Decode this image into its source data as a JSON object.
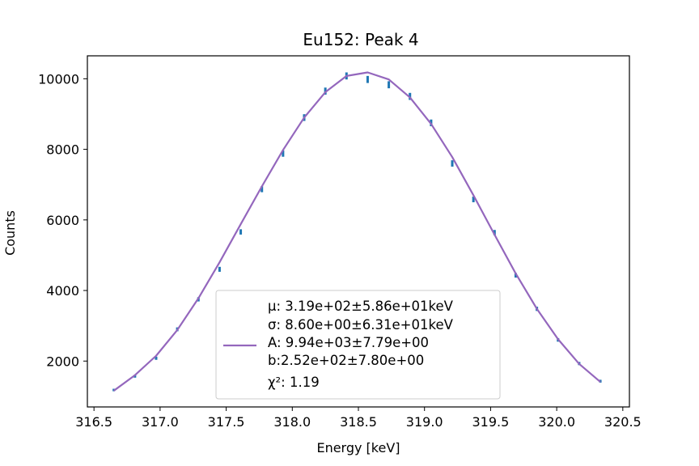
{
  "chart_data": {
    "type": "scatter",
    "title": "Eu152: Peak 4",
    "xlabel": "Energy [keV]",
    "ylabel": "Counts",
    "xlim": [
      316.45,
      320.55
    ],
    "ylim": [
      700,
      10650
    ],
    "xticks": [
      316.5,
      317.0,
      317.5,
      318.0,
      318.5,
      319.0,
      319.5,
      320.0,
      320.5
    ],
    "xtick_labels": [
      "316.5",
      "317.0",
      "317.5",
      "318.0",
      "318.5",
      "319.0",
      "319.5",
      "320.0",
      "320.5"
    ],
    "yticks": [
      2000,
      4000,
      6000,
      8000,
      10000
    ],
    "ytick_labels": [
      "2000",
      "4000",
      "6000",
      "8000",
      "10000"
    ],
    "grid": false,
    "series": [
      {
        "kind": "data-with-errorbars",
        "color": "#1f77b4",
        "x": [
          316.65,
          316.81,
          316.97,
          317.13,
          317.29,
          317.45,
          317.61,
          317.77,
          317.93,
          318.09,
          318.25,
          318.41,
          318.57,
          318.73,
          318.89,
          319.05,
          319.21,
          319.37,
          319.53,
          319.69,
          319.85,
          320.01,
          320.17,
          320.33
        ],
        "y": [
          1180,
          1570,
          2080,
          2900,
          3750,
          4600,
          5660,
          6870,
          7880,
          8900,
          9650,
          10080,
          9980,
          9830,
          9500,
          8750,
          7600,
          6580,
          5640,
          4430,
          3480,
          2600,
          1930,
          1430
        ],
        "yerr": [
          35,
          40,
          45,
          55,
          60,
          70,
          75,
          85,
          90,
          95,
          100,
          100,
          100,
          100,
          100,
          95,
          90,
          80,
          75,
          65,
          60,
          50,
          45,
          40
        ]
      },
      {
        "kind": "fit-line",
        "color": "#9467bd",
        "x": [
          316.65,
          316.81,
          316.97,
          317.13,
          317.29,
          317.45,
          317.61,
          317.77,
          317.93,
          318.09,
          318.25,
          318.41,
          318.57,
          318.73,
          318.89,
          319.05,
          319.21,
          319.37,
          319.53,
          319.69,
          319.85,
          320.01,
          320.17,
          320.33
        ],
        "y": [
          1160,
          1600,
          2150,
          2880,
          3780,
          4800,
          5880,
          6950,
          7980,
          8900,
          9620,
          10080,
          10180,
          9980,
          9470,
          8720,
          7780,
          6700,
          5580,
          4480,
          3480,
          2620,
          1920,
          1410
        ]
      }
    ],
    "legend": {
      "placement": "lower center",
      "entries": [
        "μ: 3.19e+02±5.86e+01keV",
        "σ: 8.60e+00±6.31e+01keV",
        "A: 9.94e+03±7.79e+00",
        "b:2.52e+02±7.80e+00",
        " χ²: 1.19"
      ]
    }
  }
}
